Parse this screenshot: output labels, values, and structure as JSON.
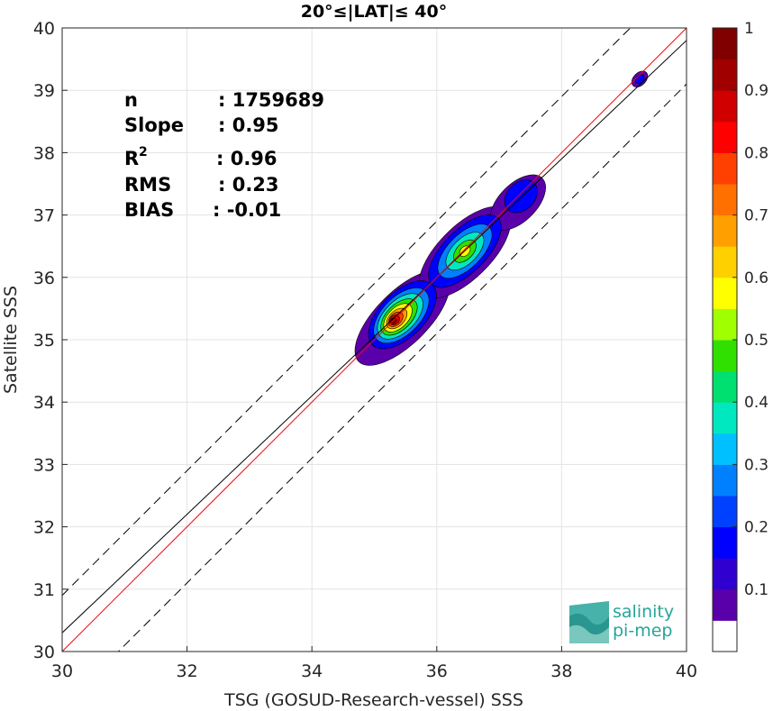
{
  "chart_data": {
    "type": "contour-density-scatter",
    "title": "20°≤|LAT|≤ 40°",
    "xlabel": "TSG (GOSUD-Research-vessel) SSS",
    "ylabel": "Satellite SSS",
    "xlim": [
      30,
      40
    ],
    "ylim": [
      30,
      40
    ],
    "xticks": [
      "30",
      "32",
      "34",
      "36",
      "38",
      "40"
    ],
    "yticks": [
      "30",
      "31",
      "32",
      "33",
      "34",
      "35",
      "36",
      "37",
      "38",
      "39",
      "40"
    ],
    "grid": true,
    "stats": [
      {
        "label": "n",
        "value": ": 1759689"
      },
      {
        "label": "Slope",
        "value": ": 0.95"
      },
      {
        "label": "R",
        "sup": "2",
        "value": ": 0.96"
      },
      {
        "label": "RMS",
        "value": ": 0.23"
      },
      {
        "label": "BIAS",
        "value": ": -0.01"
      }
    ],
    "lines": {
      "one_to_one": {
        "color": "#ff0000",
        "x": [
          30,
          40
        ],
        "y": [
          30,
          40
        ]
      },
      "regression": {
        "color": "#000000",
        "x": [
          30,
          40
        ],
        "y": [
          30.3,
          39.8
        ]
      },
      "dashed_upper": {
        "color": "#000000",
        "x": [
          30,
          40
        ],
        "y": [
          30.9,
          40.9
        ]
      },
      "dashed_lower": {
        "color": "#000000",
        "x": [
          30,
          40
        ],
        "y": [
          29.1,
          39.1
        ]
      }
    },
    "density_clusters": [
      {
        "cx": 35.3,
        "cy": 35.3,
        "peak": 1.0
      },
      {
        "cx": 35.75,
        "cy": 35.55,
        "peak": 0.6
      },
      {
        "cx": 36.45,
        "cy": 36.42,
        "peak": 0.55
      },
      {
        "cx": 37.4,
        "cy": 37.35,
        "peak": 0.25
      },
      {
        "cx": 39.25,
        "cy": 39.18,
        "peak": 0.12
      }
    ],
    "colorbar": {
      "range": [
        0,
        1
      ],
      "ticks": [
        "0.1",
        "0.2",
        "0.3",
        "0.4",
        "0.5",
        "0.6",
        "0.7",
        "0.8",
        "0.9",
        "1"
      ],
      "colors": [
        "#ffffff",
        "#5a00aa",
        "#3000d0",
        "#0000ff",
        "#0040ff",
        "#0080ff",
        "#00c0ff",
        "#00e8c0",
        "#00e070",
        "#30e000",
        "#a0ff00",
        "#ffff00",
        "#ffd000",
        "#ffa000",
        "#ff7000",
        "#ff4000",
        "#ff0000",
        "#d00000",
        "#a00000",
        "#800000"
      ]
    }
  },
  "logo": {
    "line1": "salinity",
    "line2": "pi-mep"
  }
}
